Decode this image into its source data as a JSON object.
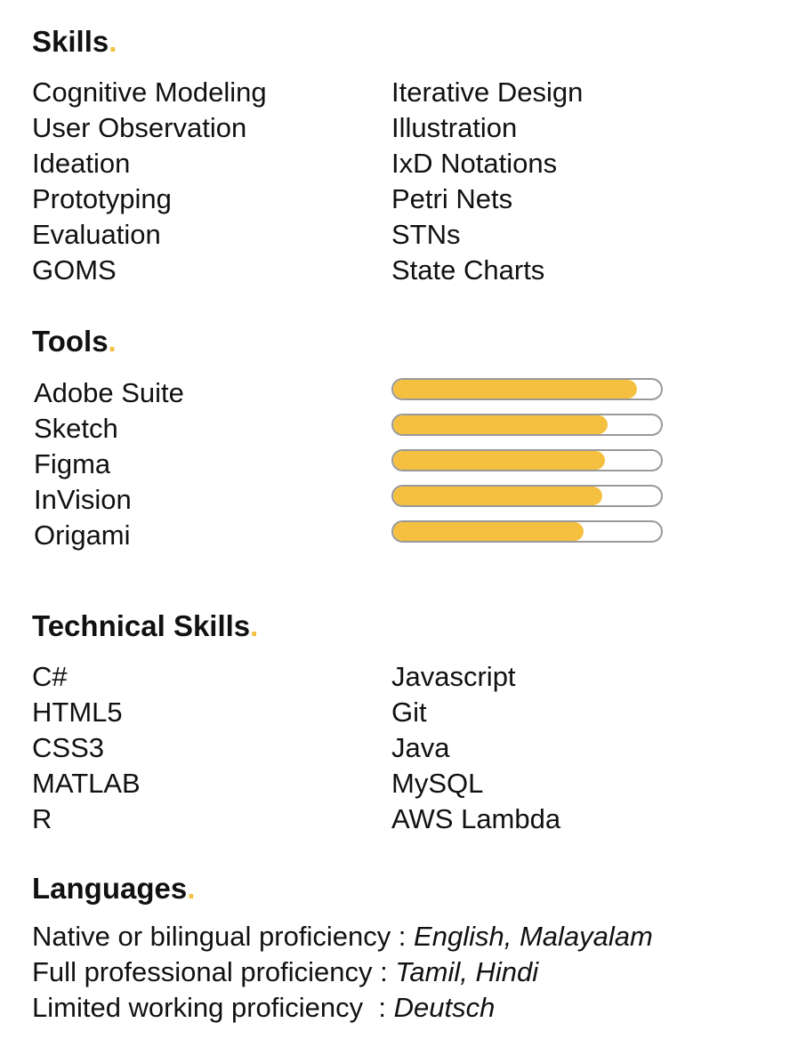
{
  "skills": {
    "title": "Skills",
    "left": [
      "Cognitive Modeling",
      "User Observation",
      "Ideation",
      "Prototyping",
      "Evaluation",
      "GOMS"
    ],
    "right": [
      "Iterative Design",
      "Illustration",
      "IxD Notations",
      "Petri Nets",
      "STNs",
      "State Charts"
    ]
  },
  "tools": {
    "title": "Tools",
    "items": [
      {
        "name": "Adobe Suite",
        "level": 91
      },
      {
        "name": "Sketch",
        "level": 80
      },
      {
        "name": "Figma",
        "level": 79
      },
      {
        "name": "InVision",
        "level": 78
      },
      {
        "name": "Origami",
        "level": 71
      }
    ]
  },
  "technical": {
    "title": "Technical Skills",
    "left": [
      "C#",
      "HTML5",
      "CSS3",
      "MATLAB",
      "R"
    ],
    "right": [
      "Javascript",
      "Git",
      "Java",
      "MySQL",
      "AWS Lambda"
    ]
  },
  "languages": {
    "title": "Languages",
    "items": [
      {
        "label": "Native or bilingual proficiency : ",
        "value": "English, Malayalam"
      },
      {
        "label": "Full professional proficiency : ",
        "value": "Tamil, Hindi"
      },
      {
        "label": "Limited working proficiency  : ",
        "value": "Deutsch"
      }
    ]
  },
  "colors": {
    "accent": "#f5bf40",
    "bar_border": "#999999"
  }
}
